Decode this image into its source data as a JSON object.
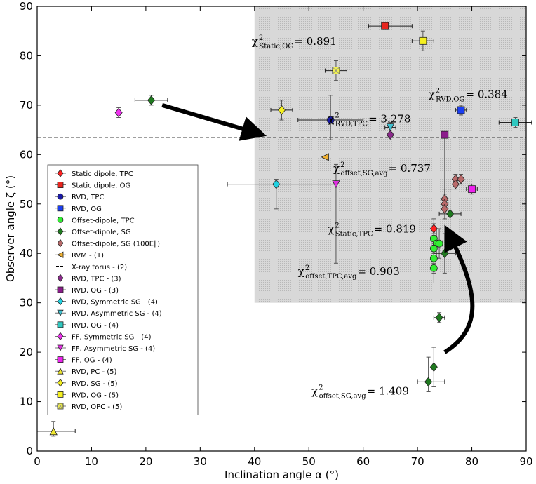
{
  "chart_data": {
    "type": "scatter",
    "xlabel": "Inclination angle α (°)",
    "ylabel": "Observer angle ζ (°)",
    "xlim": [
      0,
      90
    ],
    "ylim": [
      0,
      90
    ],
    "xticks": [
      "0",
      "10",
      "20",
      "30",
      "40",
      "50",
      "60",
      "70",
      "80",
      "90"
    ],
    "yticks": [
      "0",
      "10",
      "20",
      "30",
      "40",
      "50",
      "60",
      "70",
      "80",
      "90"
    ],
    "grid": false,
    "legend_position": "left-center",
    "shaded_region": {
      "x": [
        40,
        90
      ],
      "y": [
        30,
        90
      ],
      "color": "#d4d4d4"
    },
    "xray_torus_line": {
      "y": 63.5
    },
    "series": [
      {
        "name": "Static dipole, TPC",
        "color": "#ff2020",
        "marker": "diamond",
        "points": [
          {
            "x": 73,
            "y": 45,
            "ylo": 2,
            "yhi": 2
          }
        ]
      },
      {
        "name": "Static dipole, OG",
        "color": "#e8261f",
        "marker": "square",
        "points": [
          {
            "x": 64,
            "y": 86,
            "xlo": 3,
            "xhi": 5
          }
        ]
      },
      {
        "name": "RVD, TPC",
        "color": "#1a1aa6",
        "marker": "circle",
        "points": [
          {
            "x": 54,
            "y": 67,
            "xlo": 6,
            "xhi": 6,
            "ylo": 4,
            "yhi": 5
          }
        ]
      },
      {
        "name": "RVD, OG",
        "color": "#1b3ef2",
        "marker": "square",
        "points": [
          {
            "x": 78,
            "y": 69,
            "xlo": 1,
            "xhi": 1,
            "ylo": 1,
            "yhi": 1
          }
        ]
      },
      {
        "name": "Offset-dipole, TPC",
        "color": "#33ee33",
        "marker": "circle",
        "points": [
          {
            "x": 73,
            "y": 43,
            "ylo": 3,
            "yhi": 3
          },
          {
            "x": 73.5,
            "y": 42,
            "ylo": 3,
            "yhi": 3
          },
          {
            "x": 73,
            "y": 41,
            "ylo": 3,
            "yhi": 3
          },
          {
            "x": 73,
            "y": 39,
            "ylo": 3,
            "yhi": 3
          },
          {
            "x": 73,
            "y": 37,
            "ylo": 3,
            "yhi": 3
          },
          {
            "x": 74,
            "y": 42,
            "ylo": 3,
            "yhi": 3
          }
        ]
      },
      {
        "name": "Offset-dipole, SG",
        "color": "#1f7a1f",
        "marker": "diamond",
        "points": [
          {
            "x": 21,
            "y": 71,
            "xlo": 3,
            "xhi": 3,
            "ylo": 1,
            "yhi": 1
          },
          {
            "x": 76,
            "y": 48,
            "xlo": 2,
            "xhi": 2,
            "ylo": 5,
            "yhi": 5
          },
          {
            "x": 75,
            "y": 40,
            "xlo": 2,
            "xhi": 2,
            "ylo": 4,
            "yhi": 4
          },
          {
            "x": 74,
            "y": 27,
            "xlo": 1,
            "xhi": 1,
            "ylo": 1,
            "yhi": 1
          },
          {
            "x": 73,
            "y": 17,
            "ylo": 4,
            "yhi": 4
          },
          {
            "x": 72,
            "y": 14,
            "xlo": 2,
            "xhi": 3,
            "ylo": 2,
            "yhi": 5
          }
        ]
      },
      {
        "name": "Offset-dipole, SG (100E∥)",
        "color": "#b86a6a",
        "marker": "diamond",
        "points": [
          {
            "x": 75,
            "y": 51,
            "ylo": 2,
            "yhi": 2
          },
          {
            "x": 75,
            "y": 50,
            "ylo": 2,
            "yhi": 2
          },
          {
            "x": 75,
            "y": 49,
            "ylo": 2,
            "yhi": 2
          },
          {
            "x": 77,
            "y": 55,
            "ylo": 1,
            "yhi": 1
          },
          {
            "x": 78,
            "y": 55,
            "ylo": 1,
            "yhi": 1
          },
          {
            "x": 77,
            "y": 54,
            "ylo": 1,
            "yhi": 1
          }
        ]
      },
      {
        "name": "RVM - (1)",
        "color": "#f0b030",
        "marker": "triangle-left",
        "points": [
          {
            "x": 53,
            "y": 59.5
          }
        ]
      },
      {
        "name": "X-ray torus - (2)",
        "color": "#000000",
        "marker": "dash",
        "points": []
      },
      {
        "name": "RVD, TPC - (3)",
        "color": "#8b2a8b",
        "marker": "diamond",
        "points": [
          {
            "x": 65,
            "y": 64
          }
        ]
      },
      {
        "name": "RVD, OG - (3)",
        "color": "#8b1a8b",
        "marker": "square",
        "points": [
          {
            "x": 75,
            "y": 64,
            "ylo": 12,
            "yhi": 0
          }
        ]
      },
      {
        "name": "RVD, Symmetric SG - (4)",
        "color": "#20d0e0",
        "marker": "diamond",
        "points": [
          {
            "x": 44,
            "y": 54,
            "xlo": 9,
            "xhi": 11,
            "ylo": 5,
            "yhi": 1
          }
        ]
      },
      {
        "name": "RVD, Asymmetric SG - (4)",
        "color": "#40c0d0",
        "marker": "triangle-down",
        "points": [
          {
            "x": 65,
            "y": 65.5,
            "xlo": 1,
            "xhi": 1,
            "ylo": 1,
            "yhi": 1
          }
        ]
      },
      {
        "name": "RVD, OG - (4)",
        "color": "#30c8c0",
        "marker": "square",
        "points": [
          {
            "x": 88,
            "y": 66.5,
            "xlo": 3,
            "xhi": 3,
            "ylo": 1,
            "yhi": 1
          }
        ]
      },
      {
        "name": "FF, Symmetric SG - (4)",
        "color": "#ee33ee",
        "marker": "diamond",
        "points": [
          {
            "x": 15,
            "y": 68.5,
            "ylo": 1,
            "yhi": 1
          }
        ]
      },
      {
        "name": "FF, Asymmetric SG - (4)",
        "color": "#e030e0",
        "marker": "triangle-down",
        "points": [
          {
            "x": 55,
            "y": 54,
            "ylo": 16,
            "yhi": 4
          }
        ]
      },
      {
        "name": "FF, OG - (4)",
        "color": "#ee22ee",
        "marker": "square",
        "points": [
          {
            "x": 80,
            "y": 53,
            "xlo": 1,
            "xhi": 1,
            "ylo": 1,
            "yhi": 1
          }
        ]
      },
      {
        "name": "RVD, PC - (5)",
        "color": "#f0e830",
        "marker": "triangle-up",
        "points": [
          {
            "x": 3,
            "y": 4,
            "xlo": 3,
            "xhi": 4,
            "ylo": 1,
            "yhi": 2
          }
        ]
      },
      {
        "name": "RVD, SG - (5)",
        "color": "#f5f020",
        "marker": "diamond",
        "points": [
          {
            "x": 45,
            "y": 69,
            "xlo": 2,
            "xhi": 2,
            "ylo": 2,
            "yhi": 2
          }
        ]
      },
      {
        "name": "RVD, OG - (5)",
        "color": "#f5f020",
        "marker": "square",
        "points": [
          {
            "x": 71,
            "y": 83,
            "xlo": 2,
            "xhi": 2,
            "ylo": 2,
            "yhi": 2
          }
        ]
      },
      {
        "name": "RVD, OPC - (5)",
        "color": "#f0f050",
        "marker": "x-square",
        "points": [
          {
            "x": 55,
            "y": 77,
            "xlo": 2,
            "xhi": 2,
            "ylo": 2,
            "yhi": 2
          }
        ]
      }
    ],
    "annotations": [
      {
        "x": 39.5,
        "y": 82.2,
        "symbol": "χ",
        "sup": "2",
        "sub": "Static,OG",
        "value": "= 0.891"
      },
      {
        "x": 72,
        "y": 71.5,
        "symbol": "χ",
        "sup": "2",
        "sub": "RVD,OG",
        "value": "= 0.384"
      },
      {
        "x": 53.5,
        "y": 66.5,
        "symbol": "χ",
        "sup": "2",
        "sub": "RVD,TPC",
        "value": "= 3.278"
      },
      {
        "x": 54.5,
        "y": 56.5,
        "symbol": "χ",
        "sup": "2",
        "sub": "offset,SG,avg",
        "value": "= 0.737"
      },
      {
        "x": 53.5,
        "y": 44.2,
        "symbol": "χ",
        "sup": "2",
        "sub": "Static,TPC",
        "value": "= 0.819"
      },
      {
        "x": 48,
        "y": 35.6,
        "symbol": "χ",
        "sup": "2",
        "sub": "offset,TPC,avg",
        "value": "= 0.903"
      },
      {
        "x": 50.5,
        "y": 11.4,
        "symbol": "χ",
        "sup": "2",
        "sub": "offset,SG,avg",
        "value": "= 1.409"
      }
    ],
    "arrows": [
      {
        "from": [
          23,
          70
        ],
        "to": [
          40,
          64.5
        ],
        "style": "straight"
      },
      {
        "from": [
          75,
          20
        ],
        "to": [
          76,
          43.5
        ],
        "style": "curved"
      }
    ]
  }
}
